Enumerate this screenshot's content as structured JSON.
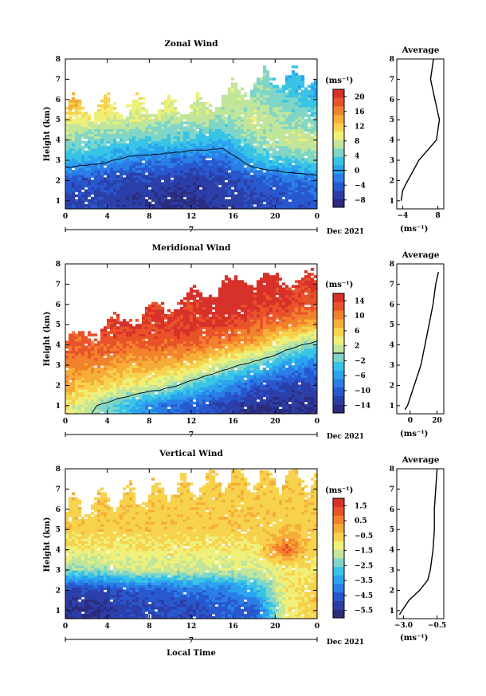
{
  "panels": [
    {
      "title": "Zonal Wind",
      "colorbar": {
        "unit": "(ms⁻¹)",
        "ticks": [
          "20",
          "16",
          "12",
          "8",
          "4",
          "0",
          "−4",
          "−8"
        ],
        "range": [
          -10,
          22
        ]
      },
      "avg": {
        "title": "Average",
        "xticks": [
          "−4",
          "8"
        ],
        "xrange": [
          -6,
          10
        ],
        "unit": "(ms⁻¹)"
      },
      "colormap_kind": "zonal"
    },
    {
      "title": "Meridional Wind",
      "colorbar": {
        "unit": "(ms⁻¹)",
        "ticks": [
          "14",
          "10",
          "6",
          "2",
          "−2",
          "−6",
          "−10",
          "−14"
        ],
        "range": [
          -16,
          16
        ]
      },
      "avg": {
        "title": "Average",
        "xticks": [
          "0",
          "20"
        ],
        "xrange": [
          -10,
          25
        ],
        "unit": "(ms⁻¹)"
      },
      "colormap_kind": "meridional"
    },
    {
      "title": "Vertical Wind",
      "colorbar": {
        "unit": "(ms⁻¹)",
        "ticks": [
          "1.5",
          "0.5",
          "−0.5",
          "−1.5",
          "−2.5",
          "−3.5",
          "−4.5",
          "−5.5"
        ],
        "range": [
          -6,
          2
        ]
      },
      "avg": {
        "title": "Average",
        "xticks": [
          "−3.0",
          "−0.5"
        ],
        "xrange": [
          -3.5,
          0
        ],
        "unit": "(ms⁻¹)"
      },
      "colormap_kind": "vertical"
    }
  ],
  "shared": {
    "xticks": [
      "0",
      "4",
      "8",
      "12",
      "16",
      "20",
      "0"
    ],
    "yticks": [
      "1",
      "2",
      "3",
      "4",
      "5",
      "6",
      "7",
      "8"
    ],
    "ylabel": "Height (km)",
    "date_mark": "7",
    "date_label": "Dec 2021",
    "xlabel": "Local Time"
  },
  "chart_data": [
    {
      "type": "heatmap",
      "title": "Zonal Wind",
      "xlabel": "",
      "ylabel": "Height (km)",
      "x_range_hours": [
        0,
        24
      ],
      "ylim": [
        0.6,
        8
      ],
      "color_scale": {
        "unit": "ms⁻¹",
        "min": -10,
        "max": 22,
        "contour": 0
      },
      "x": [
        0,
        3,
        6,
        9,
        12,
        15,
        18,
        21,
        24
      ],
      "y": [
        1,
        2,
        3,
        4,
        5,
        6,
        7
      ],
      "values": [
        [
          -6,
          -6,
          -7,
          -8,
          -8,
          -7,
          -6,
          -5,
          -4
        ],
        [
          -4,
          -5,
          -6,
          -6,
          -7,
          -6,
          -4,
          -3,
          -2
        ],
        [
          2,
          1,
          -1,
          -2,
          -3,
          -3,
          2,
          4,
          5
        ],
        [
          6,
          5,
          4,
          4,
          3,
          2,
          6,
          8,
          8
        ],
        [
          10,
          9,
          8,
          7,
          7,
          6,
          8,
          6,
          4
        ],
        [
          14,
          12,
          10,
          10,
          9,
          8,
          6,
          4,
          2
        ],
        [
          16,
          14,
          12,
          11,
          10,
          8,
          6,
          2,
          0
        ]
      ],
      "average_profile": {
        "title": "Average",
        "height_km": [
          1.0,
          1.5,
          1.8,
          2.2,
          3.0,
          4.0,
          5.0,
          6.0,
          7.0,
          8.0
        ],
        "value": [
          -4.5,
          -4.0,
          -3.0,
          -1.5,
          1.5,
          7.5,
          8.5,
          7.0,
          5.5,
          6.5
        ]
      }
    },
    {
      "type": "heatmap",
      "title": "Meridional Wind",
      "xlabel": "",
      "ylabel": "Height (km)",
      "x_range_hours": [
        0,
        24
      ],
      "ylim": [
        0.6,
        8
      ],
      "color_scale": {
        "unit": "ms⁻¹",
        "min": -16,
        "max": 16,
        "contour": 0
      },
      "x": [
        0,
        3,
        6,
        9,
        12,
        15,
        18,
        21,
        24
      ],
      "y": [
        1,
        2,
        3,
        4,
        5,
        6,
        7
      ],
      "values": [
        [
          4,
          0,
          -4,
          -8,
          -10,
          -12,
          -14,
          -14,
          -14
        ],
        [
          8,
          6,
          4,
          2,
          -2,
          -6,
          -10,
          -12,
          -12
        ],
        [
          10,
          10,
          8,
          8,
          6,
          2,
          -2,
          -6,
          -8
        ],
        [
          12,
          12,
          12,
          12,
          12,
          10,
          8,
          2,
          -2
        ],
        [
          12,
          14,
          14,
          14,
          14,
          14,
          12,
          10,
          8
        ],
        [
          12,
          14,
          14,
          14,
          14,
          16,
          14,
          14,
          12
        ],
        [
          12,
          14,
          14,
          14,
          16,
          16,
          16,
          14,
          14
        ]
      ],
      "average_profile": {
        "title": "Average",
        "height_km": [
          0.8,
          1.0,
          2.0,
          3.0,
          4.0,
          5.0,
          6.0,
          7.0,
          7.6
        ],
        "value": [
          -4,
          -2,
          3,
          8,
          11,
          14,
          17,
          19,
          21
        ]
      }
    },
    {
      "type": "heatmap",
      "title": "Vertical Wind",
      "xlabel": "Local Time",
      "ylabel": "Height (km)",
      "x_range_hours": [
        0,
        24
      ],
      "ylim": [
        0.6,
        8
      ],
      "color_scale": {
        "unit": "ms⁻¹",
        "min": -6,
        "max": 2
      },
      "x": [
        0,
        3,
        6,
        9,
        12,
        15,
        18,
        21,
        24
      ],
      "y": [
        1,
        2,
        3,
        4,
        5,
        6,
        7
      ],
      "values": [
        [
          -5.5,
          -5.5,
          -5.0,
          -5.0,
          -5.0,
          -4.5,
          -4.5,
          -1.0,
          -0.5
        ],
        [
          -5.0,
          -5.0,
          -4.5,
          -4.5,
          -4.0,
          -4.0,
          -3.0,
          -1.0,
          -0.5
        ],
        [
          -2.0,
          -2.0,
          -1.5,
          -1.5,
          -1.5,
          -1.5,
          -1.5,
          -1.0,
          -1.0
        ],
        [
          -1.0,
          -1.0,
          -1.0,
          -1.0,
          -1.0,
          -1.0,
          -1.0,
          1.0,
          -1.0
        ],
        [
          -0.5,
          -0.5,
          -0.5,
          -0.5,
          -0.5,
          -0.5,
          -0.5,
          -0.5,
          -0.5
        ],
        [
          -0.5,
          -0.5,
          -0.5,
          -0.5,
          -0.5,
          -0.5,
          -0.5,
          -0.5,
          -0.5
        ],
        [
          -0.5,
          -0.5,
          -0.5,
          -0.5,
          -0.5,
          -0.5,
          -0.5,
          -0.5,
          -0.5
        ]
      ],
      "average_profile": {
        "title": "Average",
        "height_km": [
          0.8,
          1.0,
          1.5,
          2.0,
          2.5,
          3.0,
          4.0,
          5.0,
          6.0,
          7.0,
          8.0
        ],
        "value": [
          -3.3,
          -3.1,
          -2.6,
          -1.8,
          -1.2,
          -1.0,
          -0.8,
          -0.7,
          -0.7,
          -0.6,
          -0.5
        ]
      }
    }
  ]
}
